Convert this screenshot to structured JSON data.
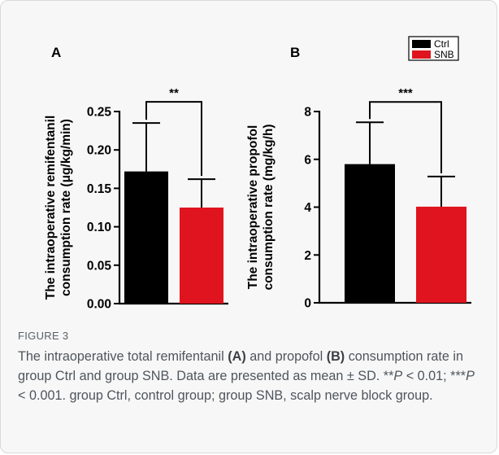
{
  "figure": {
    "label": "FIGURE 3",
    "caption_parts": [
      {
        "t": "The intraoperative total remifentanil ",
        "b": false,
        "i": false
      },
      {
        "t": "(A)",
        "b": true,
        "i": false
      },
      {
        "t": " and propofol ",
        "b": false,
        "i": false
      },
      {
        "t": "(B)",
        "b": true,
        "i": false
      },
      {
        "t": " consumption rate in group Ctrl and group SNB. Data are presented as mean ± SD. **",
        "b": false,
        "i": false
      },
      {
        "t": "P",
        "b": false,
        "i": true
      },
      {
        "t": " < 0.01; ***",
        "b": false,
        "i": false
      },
      {
        "t": "P",
        "b": false,
        "i": true
      },
      {
        "t": " < 0.001. group Ctrl, control group; group SNB, scalp nerve block group.",
        "b": false,
        "i": false
      }
    ]
  },
  "legend": {
    "placement": "top-right",
    "entries": [
      {
        "name": "Ctrl",
        "color": "#000000"
      },
      {
        "name": "SNB",
        "color": "#e0141e"
      }
    ]
  },
  "chart_data": [
    {
      "panel": "A",
      "type": "bar",
      "ylabel_lines": [
        "The intraoperative remifentanil",
        "consumption rate (μg/kg/min)"
      ],
      "categories": [
        "Ctrl",
        "SNB"
      ],
      "values": [
        0.172,
        0.125
      ],
      "errors": [
        0.063,
        0.037
      ],
      "colors": [
        "#000000",
        "#e0141e"
      ],
      "ylim": [
        0,
        0.25
      ],
      "yticks": [
        0.0,
        0.05,
        0.1,
        0.15,
        0.2,
        0.25
      ],
      "ytick_labels": [
        "0.00",
        "0.05",
        "0.10",
        "0.15",
        "0.20",
        "0.25"
      ],
      "significance": "**"
    },
    {
      "panel": "B",
      "type": "bar",
      "ylabel_lines": [
        "The intraoperative propofol",
        "consumption rate (mg/kg/h)"
      ],
      "categories": [
        "Ctrl",
        "SNB"
      ],
      "values": [
        5.8,
        4.02
      ],
      "errors": [
        1.75,
        1.26
      ],
      "colors": [
        "#000000",
        "#e0141e"
      ],
      "ylim": [
        0,
        8
      ],
      "yticks": [
        0,
        2,
        4,
        6,
        8
      ],
      "ytick_labels": [
        "0",
        "2",
        "4",
        "6",
        "8"
      ],
      "significance": "***"
    }
  ]
}
